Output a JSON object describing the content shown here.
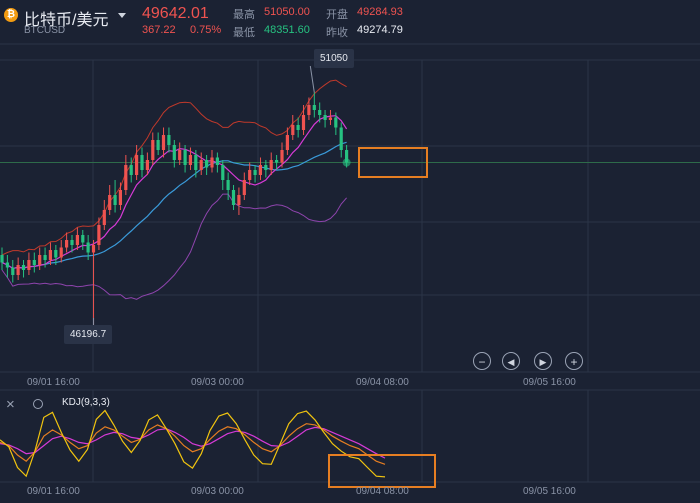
{
  "header": {
    "coin_symbol": "₿",
    "title": "比特币/美元",
    "subtitle": "BTCUSD",
    "price": "49642.01",
    "change": "367.22",
    "change_pct": "0.75%",
    "high_label": "最高",
    "high_value": "51050.00",
    "open_label": "开盘",
    "open_value": "49284.93",
    "low_label": "最低",
    "low_value": "48351.60",
    "prev_close_label": "昨收",
    "prev_close_value": "49274.79"
  },
  "annotations": {
    "max_label": "51050",
    "min_label": "46196.7"
  },
  "controls": {
    "zoom_out": "−",
    "prev": "◀",
    "next": "▶",
    "zoom_in": "+"
  },
  "x_ticks": [
    "09/01 16:00",
    "09/03 00:00",
    "09/04 08:00",
    "09/05 16:00"
  ],
  "indicator": {
    "close_icon": "×",
    "gear_icon": "gear-icon",
    "label": "KDJ(9,3,3)"
  },
  "colors": {
    "up": "#ef5350",
    "down": "#26c281",
    "ma_blue": "#3a9ad9",
    "ma_magenta": "#d63ad6",
    "boll_upper": "#c0392b",
    "boll_lower": "#8e44ad",
    "kdj_k": "#f1c40f",
    "kdj_d": "#e67e22",
    "kdj_j": "#d63ad6",
    "highlight": "#e67e22"
  },
  "chart_data": {
    "type": "candlestick",
    "ylim": [
      45500,
      52000
    ],
    "x_range": [
      0,
      130
    ],
    "max_point": {
      "x": 58,
      "value": 51050
    },
    "min_point": {
      "x": 17,
      "value": 46196.7
    },
    "candles": [
      [
        47800,
        47650,
        47950,
        47500
      ],
      [
        47650,
        47550,
        47800,
        47350
      ],
      [
        47550,
        47400,
        47700,
        47250
      ],
      [
        47400,
        47600,
        47750,
        47300
      ],
      [
        47600,
        47500,
        47700,
        47350
      ],
      [
        47500,
        47700,
        47850,
        47400
      ],
      [
        47700,
        47600,
        47850,
        47450
      ],
      [
        47600,
        47800,
        47950,
        47500
      ],
      [
        47800,
        47700,
        47950,
        47550
      ],
      [
        47700,
        47900,
        48050,
        47600
      ],
      [
        47900,
        47750,
        48000,
        47600
      ],
      [
        47750,
        47950,
        48100,
        47650
      ],
      [
        47950,
        48100,
        48250,
        47850
      ],
      [
        48100,
        48000,
        48200,
        47850
      ],
      [
        48000,
        48200,
        48350,
        47900
      ],
      [
        48200,
        48050,
        48300,
        47900
      ],
      [
        48050,
        47850,
        48200,
        47700
      ],
      [
        47850,
        48000,
        48100,
        46197
      ],
      [
        48000,
        48400,
        48550,
        47900
      ],
      [
        48400,
        48700,
        48900,
        48300
      ],
      [
        48700,
        49000,
        49200,
        48600
      ],
      [
        49000,
        48800,
        49300,
        48650
      ],
      [
        48800,
        49100,
        49250,
        48700
      ],
      [
        49100,
        49600,
        49800,
        49000
      ],
      [
        49600,
        49400,
        49750,
        49250
      ],
      [
        49400,
        49800,
        50000,
        49300
      ],
      [
        49800,
        49500,
        49950,
        49350
      ],
      [
        49500,
        49700,
        49850,
        49400
      ],
      [
        49700,
        50100,
        50250,
        49600
      ],
      [
        50100,
        49900,
        50250,
        49800
      ],
      [
        49900,
        50200,
        50350,
        49750
      ],
      [
        50200,
        50000,
        50350,
        49850
      ],
      [
        50000,
        49700,
        50100,
        49550
      ],
      [
        49700,
        49900,
        50050,
        49600
      ],
      [
        49900,
        49600,
        50000,
        49450
      ],
      [
        49600,
        49800,
        49950,
        49500
      ],
      [
        49800,
        49500,
        49900,
        49350
      ],
      [
        49500,
        49700,
        49850,
        49400
      ],
      [
        49700,
        49550,
        49800,
        49400
      ],
      [
        49550,
        49750,
        49900,
        49450
      ],
      [
        49750,
        49600,
        49850,
        49450
      ],
      [
        49600,
        49300,
        49700,
        49100
      ],
      [
        49300,
        49100,
        49450,
        48900
      ],
      [
        49100,
        48800,
        49200,
        48700
      ],
      [
        48800,
        49000,
        49150,
        48600
      ],
      [
        49000,
        49300,
        49450,
        48900
      ],
      [
        49300,
        49500,
        49650,
        49200
      ],
      [
        49500,
        49400,
        49600,
        49250
      ],
      [
        49400,
        49600,
        49750,
        49300
      ],
      [
        49600,
        49500,
        49700,
        49350
      ],
      [
        49500,
        49700,
        49850,
        49400
      ],
      [
        49700,
        49650,
        49800,
        49500
      ],
      [
        49650,
        49900,
        50050,
        49550
      ],
      [
        49900,
        50200,
        50350,
        49800
      ],
      [
        50200,
        50400,
        50600,
        50100
      ],
      [
        50400,
        50300,
        50550,
        50150
      ],
      [
        50300,
        50600,
        50800,
        50200
      ],
      [
        50600,
        50800,
        50950,
        50500
      ],
      [
        50800,
        50700,
        51050,
        50550
      ],
      [
        50700,
        50600,
        50850,
        50450
      ],
      [
        50600,
        50500,
        50700,
        50350
      ],
      [
        50500,
        50550,
        50700,
        50400
      ],
      [
        50550,
        50350,
        50650,
        50200
      ],
      [
        50350,
        49900,
        50450,
        49750
      ],
      [
        49900,
        49650,
        50000,
        49550
      ]
    ],
    "kdj": {
      "k": [
        60,
        55,
        40,
        30,
        45,
        70,
        80,
        72,
        60,
        50,
        55,
        75,
        85,
        80,
        70,
        60,
        65,
        80,
        88,
        82,
        70,
        55,
        45,
        50,
        65,
        78,
        85,
        82,
        72,
        60,
        50,
        45,
        55,
        70,
        82,
        90,
        88,
        80,
        70,
        62,
        55,
        50,
        40,
        30,
        25
      ],
      "d": [
        58,
        56,
        50,
        42,
        44,
        55,
        66,
        70,
        66,
        60,
        58,
        64,
        72,
        76,
        74,
        68,
        66,
        72,
        80,
        82,
        76,
        68,
        58,
        54,
        58,
        66,
        74,
        78,
        76,
        70,
        62,
        55,
        54,
        60,
        70,
        80,
        84,
        82,
        76,
        70,
        64,
        58,
        50,
        42,
        35
      ],
      "j": [
        64,
        53,
        20,
        6,
        47,
        100,
        108,
        76,
        48,
        30,
        49,
        97,
        111,
        88,
        62,
        44,
        63,
        96,
        104,
        82,
        58,
        29,
        19,
        42,
        79,
        102,
        107,
        90,
        64,
        40,
        26,
        25,
        57,
        90,
        106,
        110,
        96,
        76,
        58,
        46,
        37,
        34,
        20,
        6,
        5
      ]
    }
  }
}
